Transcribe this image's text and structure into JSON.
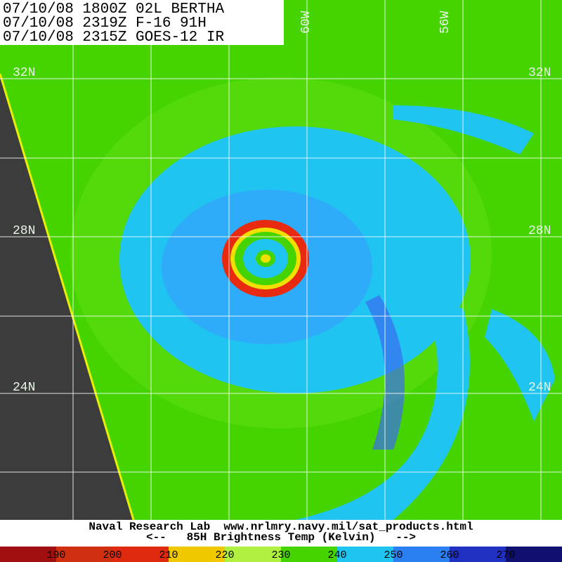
{
  "header": {
    "lines": [
      "07/10/08 1800Z 02L BERTHA",
      "07/10/08 2319Z F-16 91H",
      "07/10/08 2315Z GOES-12 IR"
    ]
  },
  "map": {
    "lat_labels": [
      "32N",
      "28N",
      "24N"
    ],
    "lon_labels": [
      "60W",
      "56W"
    ]
  },
  "footer": {
    "credit": "Naval Research Lab  www.nrlmry.navy.mil/sat_products.html",
    "caption": "<--   85H Brightness Temp (Kelvin)   -->"
  },
  "colorbar": {
    "ticks": [
      190,
      200,
      210,
      220,
      230,
      240,
      250,
      260,
      270
    ]
  }
}
